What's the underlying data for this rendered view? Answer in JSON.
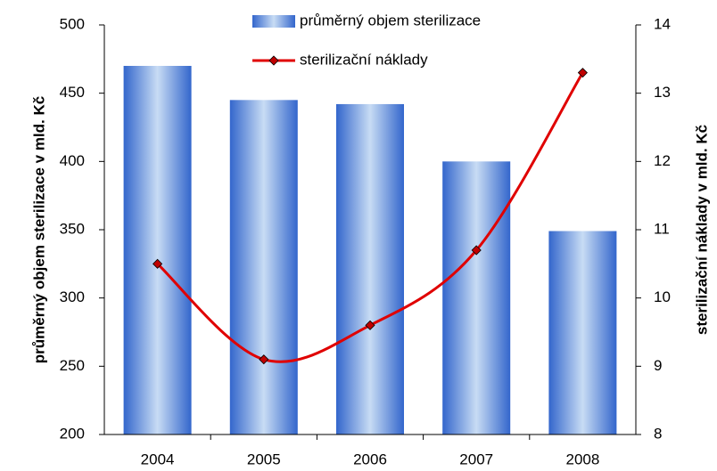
{
  "chart_data": {
    "type": "bar-line",
    "categories": [
      "2004",
      "2005",
      "2006",
      "2007",
      "2008"
    ],
    "series": [
      {
        "name": "průměrný objem sterilizace",
        "type": "bar",
        "color": "#3366cc",
        "values": [
          470,
          445,
          442,
          400,
          349
        ]
      },
      {
        "name": "sterilizační náklady",
        "type": "line",
        "axis": "y2",
        "color": "#e00000",
        "marker_color": "#c00000",
        "values": [
          10.5,
          9.1,
          9.6,
          10.7,
          13.3
        ]
      }
    ],
    "ylabel": "průměrný objem sterilizace v mld. Kč",
    "y2label": "sterilizační náklady v mld. Kč",
    "ylim": [
      200,
      500
    ],
    "yticks": [
      200,
      250,
      300,
      350,
      400,
      450,
      500
    ],
    "y2lim": [
      8,
      14
    ],
    "y2ticks": [
      8,
      9,
      10,
      11,
      12,
      13,
      14
    ],
    "legend": "top",
    "grid": false
  }
}
